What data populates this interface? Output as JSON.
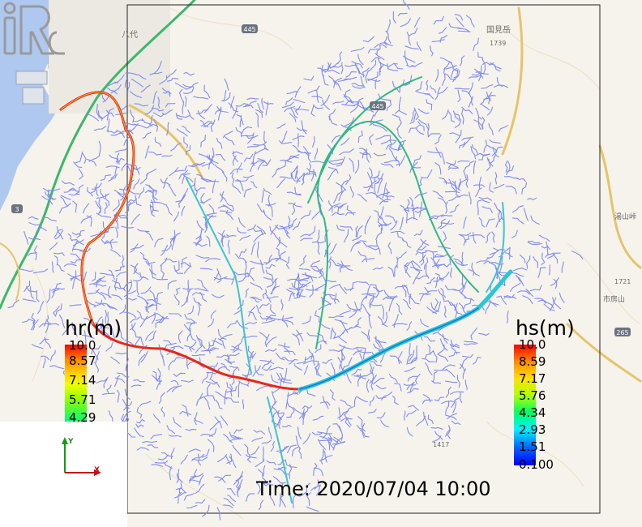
{
  "time_label": "Time: 2020/07/04 10:00",
  "legend_hr": {
    "title": "hr(m)",
    "ticks": [
      "10.0",
      "8.57",
      "7.14",
      "5.71",
      "4.29"
    ],
    "colors": [
      "#ff0000",
      "#ff8a00",
      "#ffd400",
      "#f1ff00",
      "#8bff00",
      "#00ff7a"
    ]
  },
  "legend_hs": {
    "title": "hs(m)",
    "ticks": [
      "10.0",
      "8.59",
      "7.17",
      "5.76",
      "4.34",
      "2.93",
      "1.51",
      "0.100"
    ],
    "colors": [
      "#ff0000",
      "#ff8a00",
      "#ffe100",
      "#b2ff00",
      "#00ff66",
      "#00f3ff",
      "#0066ff",
      "#0000ff"
    ]
  },
  "axes_triad": {
    "y_label": "Y",
    "x_label": "X",
    "y_color": "#129a12",
    "x_color": "#c01414"
  },
  "map_labels": {
    "roads": [
      "445",
      "445",
      "3",
      "265"
    ],
    "places": [
      "八代",
      "国見岳",
      "1739",
      "1721",
      "1417",
      "湯山峠",
      "市房山"
    ]
  },
  "colors": {
    "sea": "#aec8f0",
    "land": "#f6f3ec",
    "river_network": "#7f8cf0",
    "highway": "#3cb86a",
    "road": "#e5c46a",
    "main_river_hot": "#e8261a",
    "main_river_mid": "#2fb88a"
  }
}
